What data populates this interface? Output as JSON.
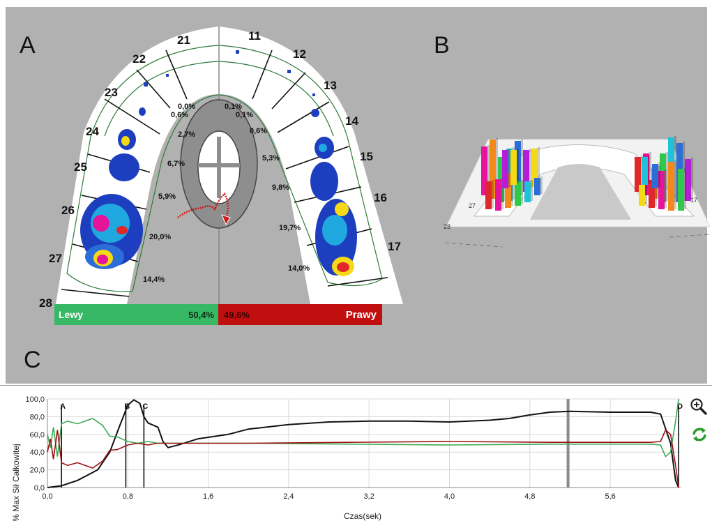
{
  "panels": {
    "a_label": "A",
    "b_label": "B",
    "c_label": "C"
  },
  "arch": {
    "teeth_left": [
      "21",
      "22",
      "23",
      "24",
      "25",
      "26",
      "27",
      "28"
    ],
    "teeth_right": [
      "11",
      "12",
      "13",
      "14",
      "15",
      "16",
      "17"
    ],
    "percent_left": [
      "0,0%",
      "0,6%",
      "2,7%",
      "6,7%",
      "5,9%",
      "20,0%",
      "14,4%"
    ],
    "percent_right": [
      "0,1%",
      "0,1%",
      "0,6%",
      "5,3%",
      "9,8%",
      "19,7%",
      "14,0%"
    ],
    "colors": {
      "contour": "#2d7a3a",
      "pressure_blue": "#1d3fbf",
      "pressure_red": "#e02828",
      "pressure_magenta": "#e6139b"
    }
  },
  "balance": {
    "left_label": "Lewy",
    "left_value": "50,4%",
    "right_label": "Prawy",
    "right_value": "49,6%",
    "left_color": "#36b864",
    "right_color": "#c10e0e"
  },
  "view3d": {
    "tooth_left": "27",
    "tooth_left_lower": "28",
    "tooth_right": "17"
  },
  "controls": {
    "zoom_icon": "zoom-in-icon",
    "refresh_icon": "refresh-icon"
  },
  "chart_data": {
    "type": "line",
    "xlabel": "Czas(sek)",
    "ylabel": "% Max Sił Całkowitej",
    "xlim": [
      0,
      6.3
    ],
    "ylim": [
      0,
      100
    ],
    "x_ticks": [
      "0,0",
      "0,8",
      "1,6",
      "2,4",
      "3,2",
      "4,0",
      "4,8",
      "5,6"
    ],
    "y_ticks": [
      "0,0",
      "20,0",
      "40,0",
      "60,0",
      "80,0",
      "100,0"
    ],
    "markers": [
      {
        "label": "A",
        "x": 0.14
      },
      {
        "label": "B",
        "x": 0.78
      },
      {
        "label": "C",
        "x": 0.96
      },
      {
        "label": "D",
        "x": 6.28
      }
    ],
    "cursor_x": 5.18,
    "grid": true,
    "series": [
      {
        "color": "#111111",
        "x": [
          0,
          0.14,
          0.3,
          0.5,
          0.62,
          0.72,
          0.8,
          0.86,
          0.92,
          0.96,
          1.0,
          1.1,
          1.15,
          1.2,
          1.3,
          1.5,
          1.8,
          2.0,
          2.4,
          2.8,
          3.2,
          3.6,
          4.0,
          4.4,
          4.6,
          4.8,
          5.0,
          5.2,
          5.6,
          6.0,
          6.1,
          6.2,
          6.25,
          6.28
        ],
        "y": [
          0,
          2,
          8,
          20,
          40,
          70,
          93,
          99,
          95,
          80,
          73,
          68,
          52,
          45,
          48,
          55,
          60,
          66,
          71,
          74,
          75,
          75,
          74,
          76,
          78,
          82,
          85,
          86,
          85,
          85,
          83,
          50,
          8,
          0
        ]
      },
      {
        "color": "#3daa55",
        "x": [
          0,
          0.03,
          0.06,
          0.1,
          0.14,
          0.2,
          0.3,
          0.45,
          0.55,
          0.62,
          0.7,
          0.8,
          0.9,
          1.0,
          1.1,
          1.2,
          1.5,
          2.0,
          3.0,
          4.0,
          5.0,
          6.0,
          6.1,
          6.15,
          6.2,
          6.25,
          6.28
        ],
        "y": [
          60,
          45,
          68,
          35,
          72,
          75,
          72,
          78,
          70,
          58,
          57,
          52,
          50,
          52,
          50,
          50,
          50,
          50,
          49,
          48,
          49,
          49,
          48,
          35,
          40,
          75,
          100
        ],
        "y_note": "green"
      },
      {
        "color": "#9b1212",
        "x": [
          0,
          0.03,
          0.06,
          0.1,
          0.14,
          0.2,
          0.3,
          0.45,
          0.55,
          0.62,
          0.7,
          0.8,
          0.9,
          1.0,
          1.1,
          1.2,
          1.5,
          2.0,
          3.0,
          4.0,
          5.0,
          6.0,
          6.1,
          6.15,
          6.2,
          6.25,
          6.28
        ],
        "y": [
          40,
          55,
          32,
          65,
          28,
          25,
          28,
          22,
          30,
          42,
          43,
          48,
          50,
          48,
          50,
          50,
          50,
          50,
          51,
          52,
          51,
          51,
          52,
          65,
          60,
          25,
          0
        ]
      }
    ]
  }
}
